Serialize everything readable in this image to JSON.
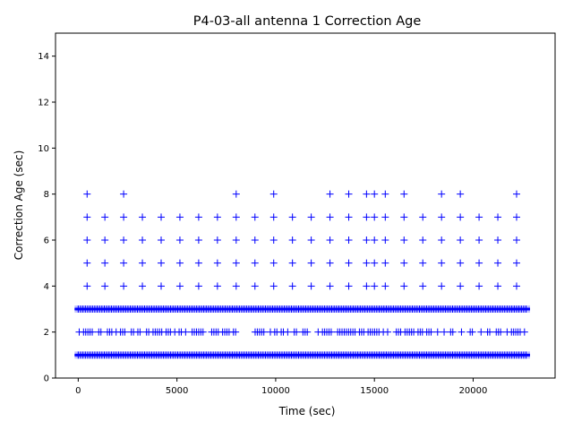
{
  "chart_data": {
    "type": "scatter",
    "title": "P4-03-all antenna 1 Correction Age",
    "xlabel": "Time (sec)",
    "ylabel": "Correction Age (sec)",
    "xlim": [
      -1150,
      24150
    ],
    "ylim": [
      0,
      15
    ],
    "xticks": [
      0,
      5000,
      10000,
      15000,
      20000
    ],
    "yticks": [
      0,
      2,
      4,
      6,
      8,
      10,
      12,
      14
    ],
    "grid": false,
    "marker": "+",
    "marker_color": "#0000ff",
    "series": [
      {
        "name": "",
        "points": [
          {
            "x_from": 0,
            "x_to": 22700,
            "y": 1,
            "dense": true
          },
          {
            "x_from": 0,
            "x_to": 22700,
            "y": 3,
            "dense": true
          },
          {
            "x_from": 50,
            "x_to": 22600,
            "y": 2,
            "dense": false
          },
          {
            "x": 450,
            "ys": [
              4,
              5,
              6,
              7,
              8
            ]
          },
          {
            "x": 1350,
            "ys": [
              4,
              5,
              6,
              7
            ]
          },
          {
            "x": 2300,
            "ys": [
              4,
              5,
              6,
              7,
              8
            ]
          },
          {
            "x": 3250,
            "ys": [
              4,
              5,
              6,
              7
            ]
          },
          {
            "x": 4200,
            "ys": [
              4,
              5,
              6,
              7
            ]
          },
          {
            "x": 5150,
            "ys": [
              4,
              5,
              6,
              7
            ]
          },
          {
            "x": 6100,
            "ys": [
              4,
              5,
              6,
              7
            ]
          },
          {
            "x": 7050,
            "ys": [
              4,
              5,
              6,
              7
            ]
          },
          {
            "x": 8000,
            "ys": [
              4,
              5,
              6,
              7,
              8
            ]
          },
          {
            "x": 8950,
            "ys": [
              4,
              5,
              6,
              7
            ]
          },
          {
            "x": 9900,
            "ys": [
              4,
              5,
              6,
              7,
              8
            ]
          },
          {
            "x": 10850,
            "ys": [
              4,
              5,
              6,
              7
            ]
          },
          {
            "x": 11800,
            "ys": [
              4,
              5,
              6,
              7
            ]
          },
          {
            "x": 12750,
            "ys": [
              4,
              5,
              6,
              7,
              8
            ]
          },
          {
            "x": 13700,
            "ys": [
              4,
              5,
              6,
              7,
              8
            ]
          },
          {
            "x": 14600,
            "ys": [
              4,
              5,
              6,
              7,
              8
            ]
          },
          {
            "x": 15000,
            "ys": [
              4,
              5,
              6,
              7,
              8
            ]
          },
          {
            "x": 15550,
            "ys": [
              4,
              5,
              6,
              7,
              8
            ]
          },
          {
            "x": 16500,
            "ys": [
              4,
              5,
              6,
              7,
              8
            ]
          },
          {
            "x": 17450,
            "ys": [
              4,
              5,
              6,
              7
            ]
          },
          {
            "x": 18400,
            "ys": [
              4,
              5,
              6,
              7,
              8
            ]
          },
          {
            "x": 19350,
            "ys": [
              4,
              5,
              6,
              7,
              8
            ]
          },
          {
            "x": 20300,
            "ys": [
              4,
              5,
              6,
              7
            ]
          },
          {
            "x": 21250,
            "ys": [
              4,
              5,
              6,
              7
            ]
          },
          {
            "x": 22200,
            "ys": [
              4,
              5,
              6,
              7,
              8
            ]
          }
        ]
      }
    ]
  }
}
